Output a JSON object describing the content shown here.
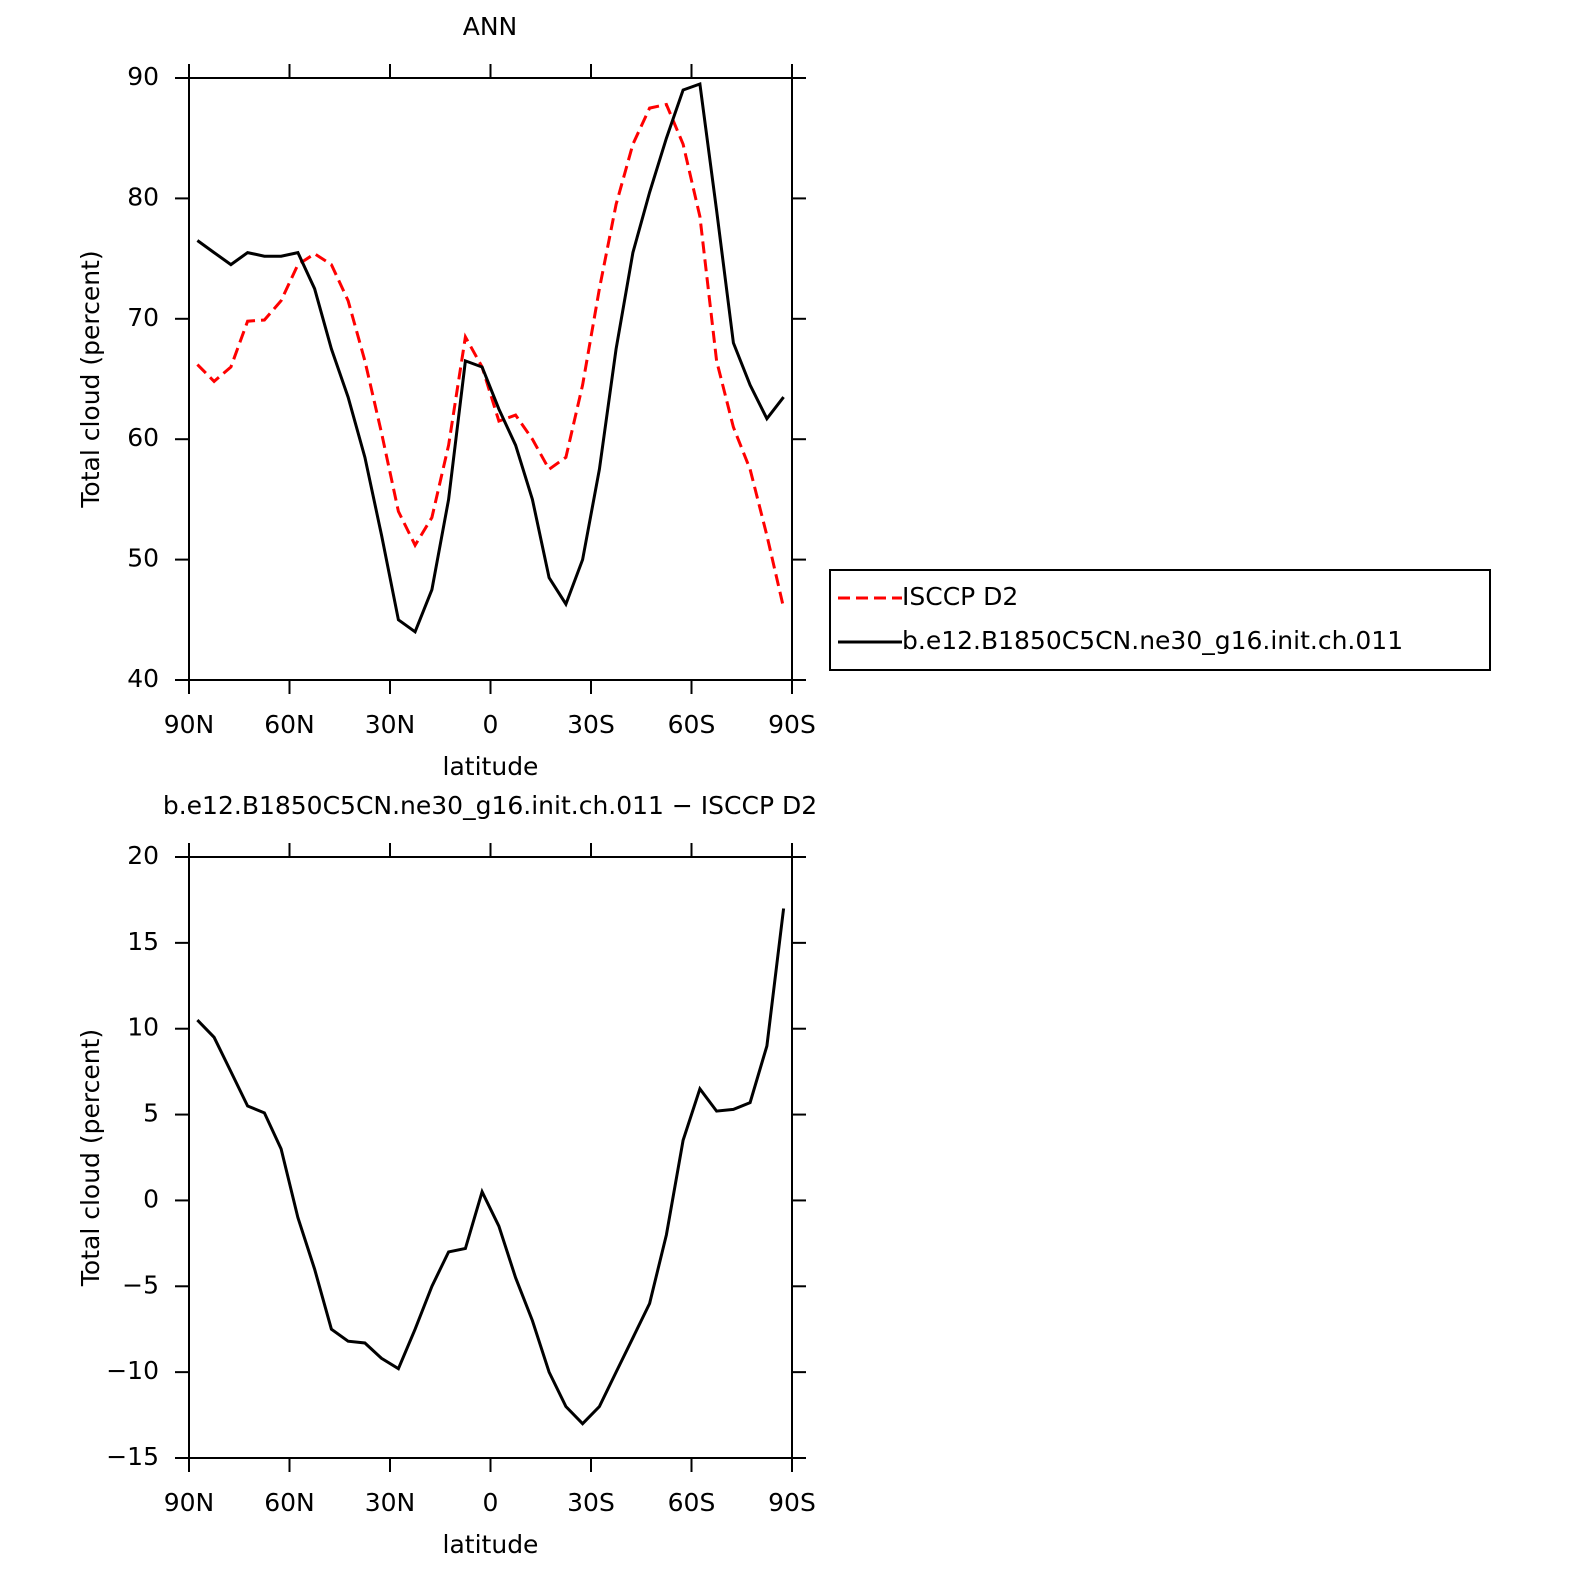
{
  "chart_data": [
    {
      "type": "line",
      "title": "ANN",
      "xlabel": "latitude",
      "ylabel": "Total cloud (percent)",
      "x": [
        87.5,
        82.5,
        77.5,
        72.5,
        67.5,
        62.5,
        57.5,
        52.5,
        47.5,
        42.5,
        37.5,
        32.5,
        27.5,
        22.5,
        17.5,
        12.5,
        7.5,
        2.5,
        -2.5,
        -7.5,
        -12.5,
        -17.5,
        -22.5,
        -27.5,
        -32.5,
        -37.5,
        -42.5,
        -47.5,
        -52.5,
        -57.5,
        -62.5,
        -67.5,
        -72.5,
        -77.5,
        -82.5,
        -87.5
      ],
      "series": [
        {
          "name": "ISCCP D2",
          "color": "#ff0000",
          "dashed": true,
          "values": [
            66.2,
            64.8,
            66,
            69.8,
            69.9,
            71.5,
            74.5,
            75.4,
            74.5,
            71.5,
            66.5,
            60.5,
            54,
            51.2,
            53.5,
            59.5,
            68.5,
            66,
            61.5,
            62,
            60,
            57.5,
            58.5,
            64.5,
            72.5,
            79.5,
            84.5,
            87.5,
            87.8,
            84.5,
            78.5,
            66.5,
            61,
            57.5,
            52,
            46
          ]
        },
        {
          "name": "b.e12.B1850C5CN.ne30_g16.init.ch.011",
          "color": "#000000",
          "dashed": false,
          "values": [
            76.5,
            75.5,
            74.5,
            75.5,
            75.2,
            75.2,
            75.5,
            72.5,
            67.5,
            63.5,
            58.5,
            52,
            45,
            44,
            47.5,
            55,
            66.5,
            66,
            62.5,
            59.5,
            55,
            48.5,
            46.3,
            50,
            57.5,
            67.5,
            75.5,
            80.5,
            85,
            89,
            89.5,
            79,
            68,
            64.5,
            61.7,
            63.5
          ]
        }
      ],
      "xlim": [
        90,
        -90
      ],
      "xticks": [
        {
          "value": 90,
          "label": "90N"
        },
        {
          "value": 60,
          "label": "60N"
        },
        {
          "value": 30,
          "label": "30N"
        },
        0,
        {
          "value": -30,
          "label": "30S"
        },
        {
          "value": -60,
          "label": "60S"
        },
        {
          "value": -90,
          "label": "90S"
        }
      ],
      "ylim": [
        40,
        90
      ],
      "yticks": [
        40,
        50,
        60,
        70,
        80,
        90
      ],
      "legend": "right"
    },
    {
      "type": "line",
      "title": "b.e12.B1850C5CN.ne30_g16.init.ch.011 − ISCCP D2",
      "xlabel": "latitude",
      "ylabel": "Total cloud (percent)",
      "x": [
        87.5,
        82.5,
        77.5,
        72.5,
        67.5,
        62.5,
        57.5,
        52.5,
        47.5,
        42.5,
        37.5,
        32.5,
        27.5,
        22.5,
        17.5,
        12.5,
        7.5,
        2.5,
        -2.5,
        -7.5,
        -12.5,
        -17.5,
        -22.5,
        -27.5,
        -32.5,
        -37.5,
        -42.5,
        -47.5,
        -52.5,
        -57.5,
        -62.5,
        -67.5,
        -72.5,
        -77.5,
        -82.5,
        -87.5
      ],
      "series": [
        {
          "color": "#000000",
          "dashed": false,
          "values": [
            10.5,
            9.5,
            7.5,
            5.5,
            5.1,
            3,
            -1,
            -4,
            -7.5,
            -8.2,
            -8.3,
            -9.2,
            -9.8,
            -7.5,
            -5,
            -3,
            -2.8,
            0.5,
            -1.5,
            -4.5,
            -7,
            -10,
            -12,
            -13,
            -12,
            -10,
            -8,
            -6,
            -2,
            3.5,
            6.5,
            5.2,
            5.3,
            5.7,
            9,
            17
          ]
        }
      ],
      "xlim": [
        90,
        -90
      ],
      "xticks": [
        {
          "value": 90,
          "label": "90N"
        },
        {
          "value": 60,
          "label": "60N"
        },
        {
          "value": 30,
          "label": "30N"
        },
        0,
        {
          "value": -30,
          "label": "30S"
        },
        {
          "value": -60,
          "label": "60S"
        },
        {
          "value": -90,
          "label": "90S"
        }
      ],
      "ylim": [
        -15,
        20
      ],
      "yticks": [
        {
          "value": -15,
          "label": "−15"
        },
        {
          "value": -10,
          "label": "−10"
        },
        {
          "value": -5,
          "label": "−5"
        },
        0,
        5,
        10,
        15,
        20
      ]
    }
  ]
}
